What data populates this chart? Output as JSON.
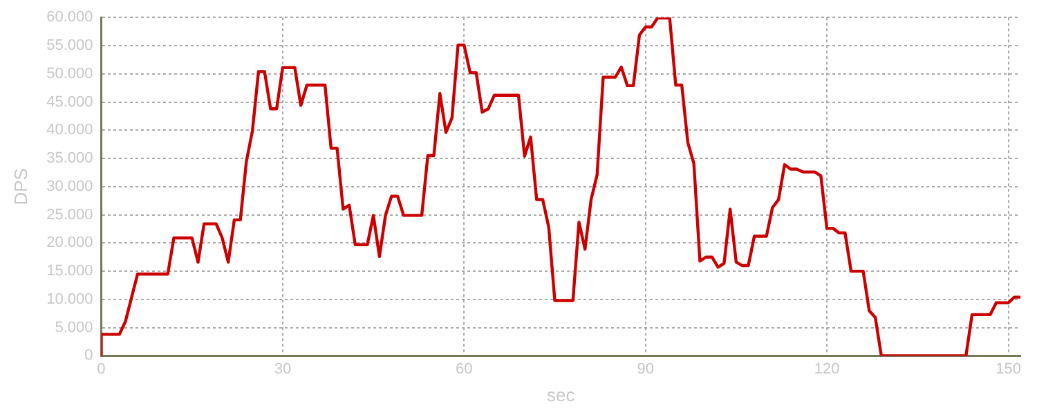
{
  "chart_data": {
    "type": "line",
    "xlabel": "sec",
    "ylabel": "DPS",
    "x": [
      0,
      0,
      3,
      4,
      6,
      11,
      12,
      15,
      16,
      17,
      19,
      20,
      21,
      22,
      23,
      24,
      25,
      26,
      27,
      28,
      29,
      30,
      32,
      33,
      34,
      37,
      38,
      39,
      40,
      41,
      42,
      44,
      45,
      46,
      47,
      48,
      49,
      50,
      53,
      54,
      55,
      56,
      57,
      58,
      59,
      60,
      61,
      62,
      63,
      64,
      65,
      69,
      70,
      71,
      72,
      73,
      74,
      75,
      78,
      79,
      80,
      81,
      82,
      83,
      85,
      86,
      87,
      88,
      89,
      90,
      91,
      92,
      94,
      95,
      96,
      97,
      98,
      99,
      100,
      101,
      102,
      103,
      104,
      105,
      106,
      107,
      108,
      110,
      111,
      112,
      113,
      114,
      115,
      116,
      118,
      119,
      120,
      121,
      122,
      123,
      124,
      126,
      127,
      128,
      129,
      143,
      144,
      147,
      148,
      150,
      151,
      152
    ],
    "series": [
      {
        "color": "#cc0000",
        "values": [
          0,
          3800,
          3800,
          6100,
          14500,
          14500,
          20900,
          20900,
          16600,
          23400,
          23400,
          20900,
          16600,
          24100,
          24100,
          34500,
          39900,
          50400,
          50400,
          43800,
          43800,
          51100,
          51100,
          44400,
          48000,
          48000,
          36800,
          36800,
          26000,
          26700,
          19700,
          19700,
          24900,
          17600,
          24900,
          28300,
          28300,
          24900,
          24900,
          35500,
          35500,
          46500,
          39600,
          42200,
          55100,
          55100,
          50200,
          50200,
          43200,
          43800,
          46200,
          46200,
          35400,
          38800,
          27700,
          27700,
          22800,
          9800,
          9800,
          23700,
          18900,
          27700,
          32100,
          49400,
          49400,
          51200,
          47900,
          47900,
          56900,
          58300,
          58300,
          59900,
          59900,
          48000,
          48000,
          37800,
          34100,
          16800,
          17500,
          17500,
          15700,
          16400,
          26000,
          16600,
          16000,
          16000,
          21200,
          21200,
          26300,
          27700,
          33900,
          33100,
          33100,
          32600,
          32600,
          31900,
          22600,
          22600,
          21800,
          21800,
          15000,
          15000,
          8000,
          6800,
          0,
          0,
          7300,
          7300,
          9400,
          9400,
          10400,
          10400
        ]
      }
    ],
    "xlim": [
      0,
      152
    ],
    "xticks": [
      0,
      30,
      60,
      90,
      120,
      150
    ],
    "ylim": [
      0,
      60000
    ],
    "yticks": [
      {
        "value": 0,
        "label": "0"
      },
      {
        "value": 5000,
        "label": "5.000"
      },
      {
        "value": 10000,
        "label": "10.000"
      },
      {
        "value": 15000,
        "label": "15.000"
      },
      {
        "value": 20000,
        "label": "20.000"
      },
      {
        "value": 25000,
        "label": "25.000"
      },
      {
        "value": 30000,
        "label": "30.000"
      },
      {
        "value": 35000,
        "label": "35.000"
      },
      {
        "value": 40000,
        "label": "40.000"
      },
      {
        "value": 45000,
        "label": "45.000"
      },
      {
        "value": 50000,
        "label": "50.000"
      },
      {
        "value": 55000,
        "label": "55.000"
      },
      {
        "value": 60000,
        "label": "60.000"
      }
    ],
    "grid": true,
    "legend": false,
    "marker": "none",
    "line_style": "solid"
  }
}
